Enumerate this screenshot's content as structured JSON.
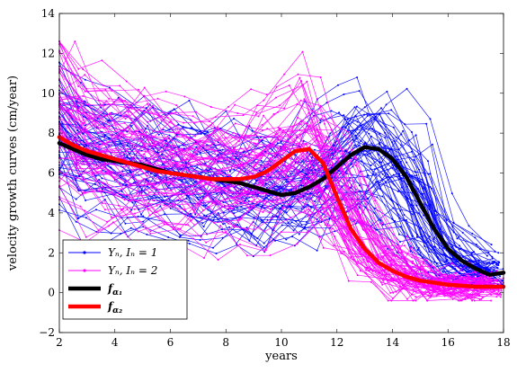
{
  "chart_data": {
    "type": "line",
    "xlabel": "years",
    "ylabel": "velocity growth curves (cm/year)",
    "xlim": [
      2,
      18
    ],
    "ylim": [
      -2,
      14
    ],
    "xticks": [
      2,
      4,
      6,
      8,
      10,
      12,
      14,
      16,
      18
    ],
    "yticks": [
      -2,
      0,
      2,
      4,
      6,
      8,
      10,
      12,
      14
    ],
    "grid": false,
    "legend_position": "bottom-left",
    "colors": {
      "group1": "#0000ff",
      "group2": "#ff00ff",
      "f_alpha1": "#000000",
      "f_alpha2": "#ff0000"
    },
    "legend": [
      {
        "label": "Y_n, I_n = 1",
        "name": "Yₙ, Iₙ = 1",
        "color": "#0000ff",
        "style": "thin-marker"
      },
      {
        "label": "Y_n, I_n = 2",
        "name": "Yₙ, Iₙ = 2",
        "color": "#ff00ff",
        "style": "thin-marker"
      },
      {
        "label": "f_alpha1",
        "name": "f",
        "sub": "α₁",
        "color": "#000000",
        "style": "thick"
      },
      {
        "label": "f_alpha2",
        "name": "f",
        "sub": "α₂",
        "color": "#ff0000",
        "style": "thick"
      }
    ],
    "series": [
      {
        "name": "f_alpha1",
        "color": "#000000",
        "x": [
          2,
          2.5,
          3,
          3.5,
          4,
          4.5,
          5,
          5.5,
          6,
          6.5,
          7,
          7.5,
          8,
          8.5,
          9,
          9.5,
          10,
          10.5,
          11,
          11.5,
          12,
          12.5,
          13,
          13.5,
          14,
          14.5,
          15,
          15.5,
          16,
          16.5,
          17,
          17.5,
          18
        ],
        "y": [
          7.5,
          7.2,
          6.9,
          6.7,
          6.6,
          6.5,
          6.4,
          6.2,
          6.0,
          5.9,
          5.8,
          5.7,
          5.6,
          5.5,
          5.3,
          5.1,
          4.9,
          5.0,
          5.3,
          5.7,
          6.3,
          6.9,
          7.3,
          7.2,
          6.7,
          5.8,
          4.5,
          3.2,
          2.2,
          1.6,
          1.2,
          0.9,
          1.0
        ]
      },
      {
        "name": "f_alpha2",
        "color": "#ff0000",
        "x": [
          2,
          2.5,
          3,
          3.5,
          4,
          4.5,
          5,
          5.5,
          6,
          6.5,
          7,
          7.5,
          8,
          8.5,
          9,
          9.5,
          10,
          10.5,
          11,
          11.5,
          12,
          12.5,
          13,
          13.5,
          14,
          14.5,
          15,
          15.5,
          16,
          16.5,
          17,
          17.5,
          18
        ],
        "y": [
          7.8,
          7.4,
          7.1,
          6.9,
          6.7,
          6.5,
          6.3,
          6.1,
          6.0,
          5.9,
          5.8,
          5.7,
          5.7,
          5.7,
          5.8,
          6.1,
          6.6,
          7.1,
          7.2,
          6.5,
          4.8,
          3.2,
          2.2,
          1.5,
          1.1,
          0.8,
          0.6,
          0.5,
          0.4,
          0.35,
          0.3,
          0.3,
          0.3
        ]
      }
    ],
    "individual_curves": {
      "I_n = 1": {
        "color": "#0000ff",
        "count": 60,
        "peak_age_range": [
          11.5,
          15.5
        ],
        "peak_value_range": [
          6.5,
          12.5
        ]
      },
      "I_n = 2": {
        "color": "#ff00ff",
        "count": 60,
        "peak_age_range": [
          9.5,
          12.5
        ],
        "peak_value_range": [
          6.5,
          12.5
        ]
      }
    }
  }
}
